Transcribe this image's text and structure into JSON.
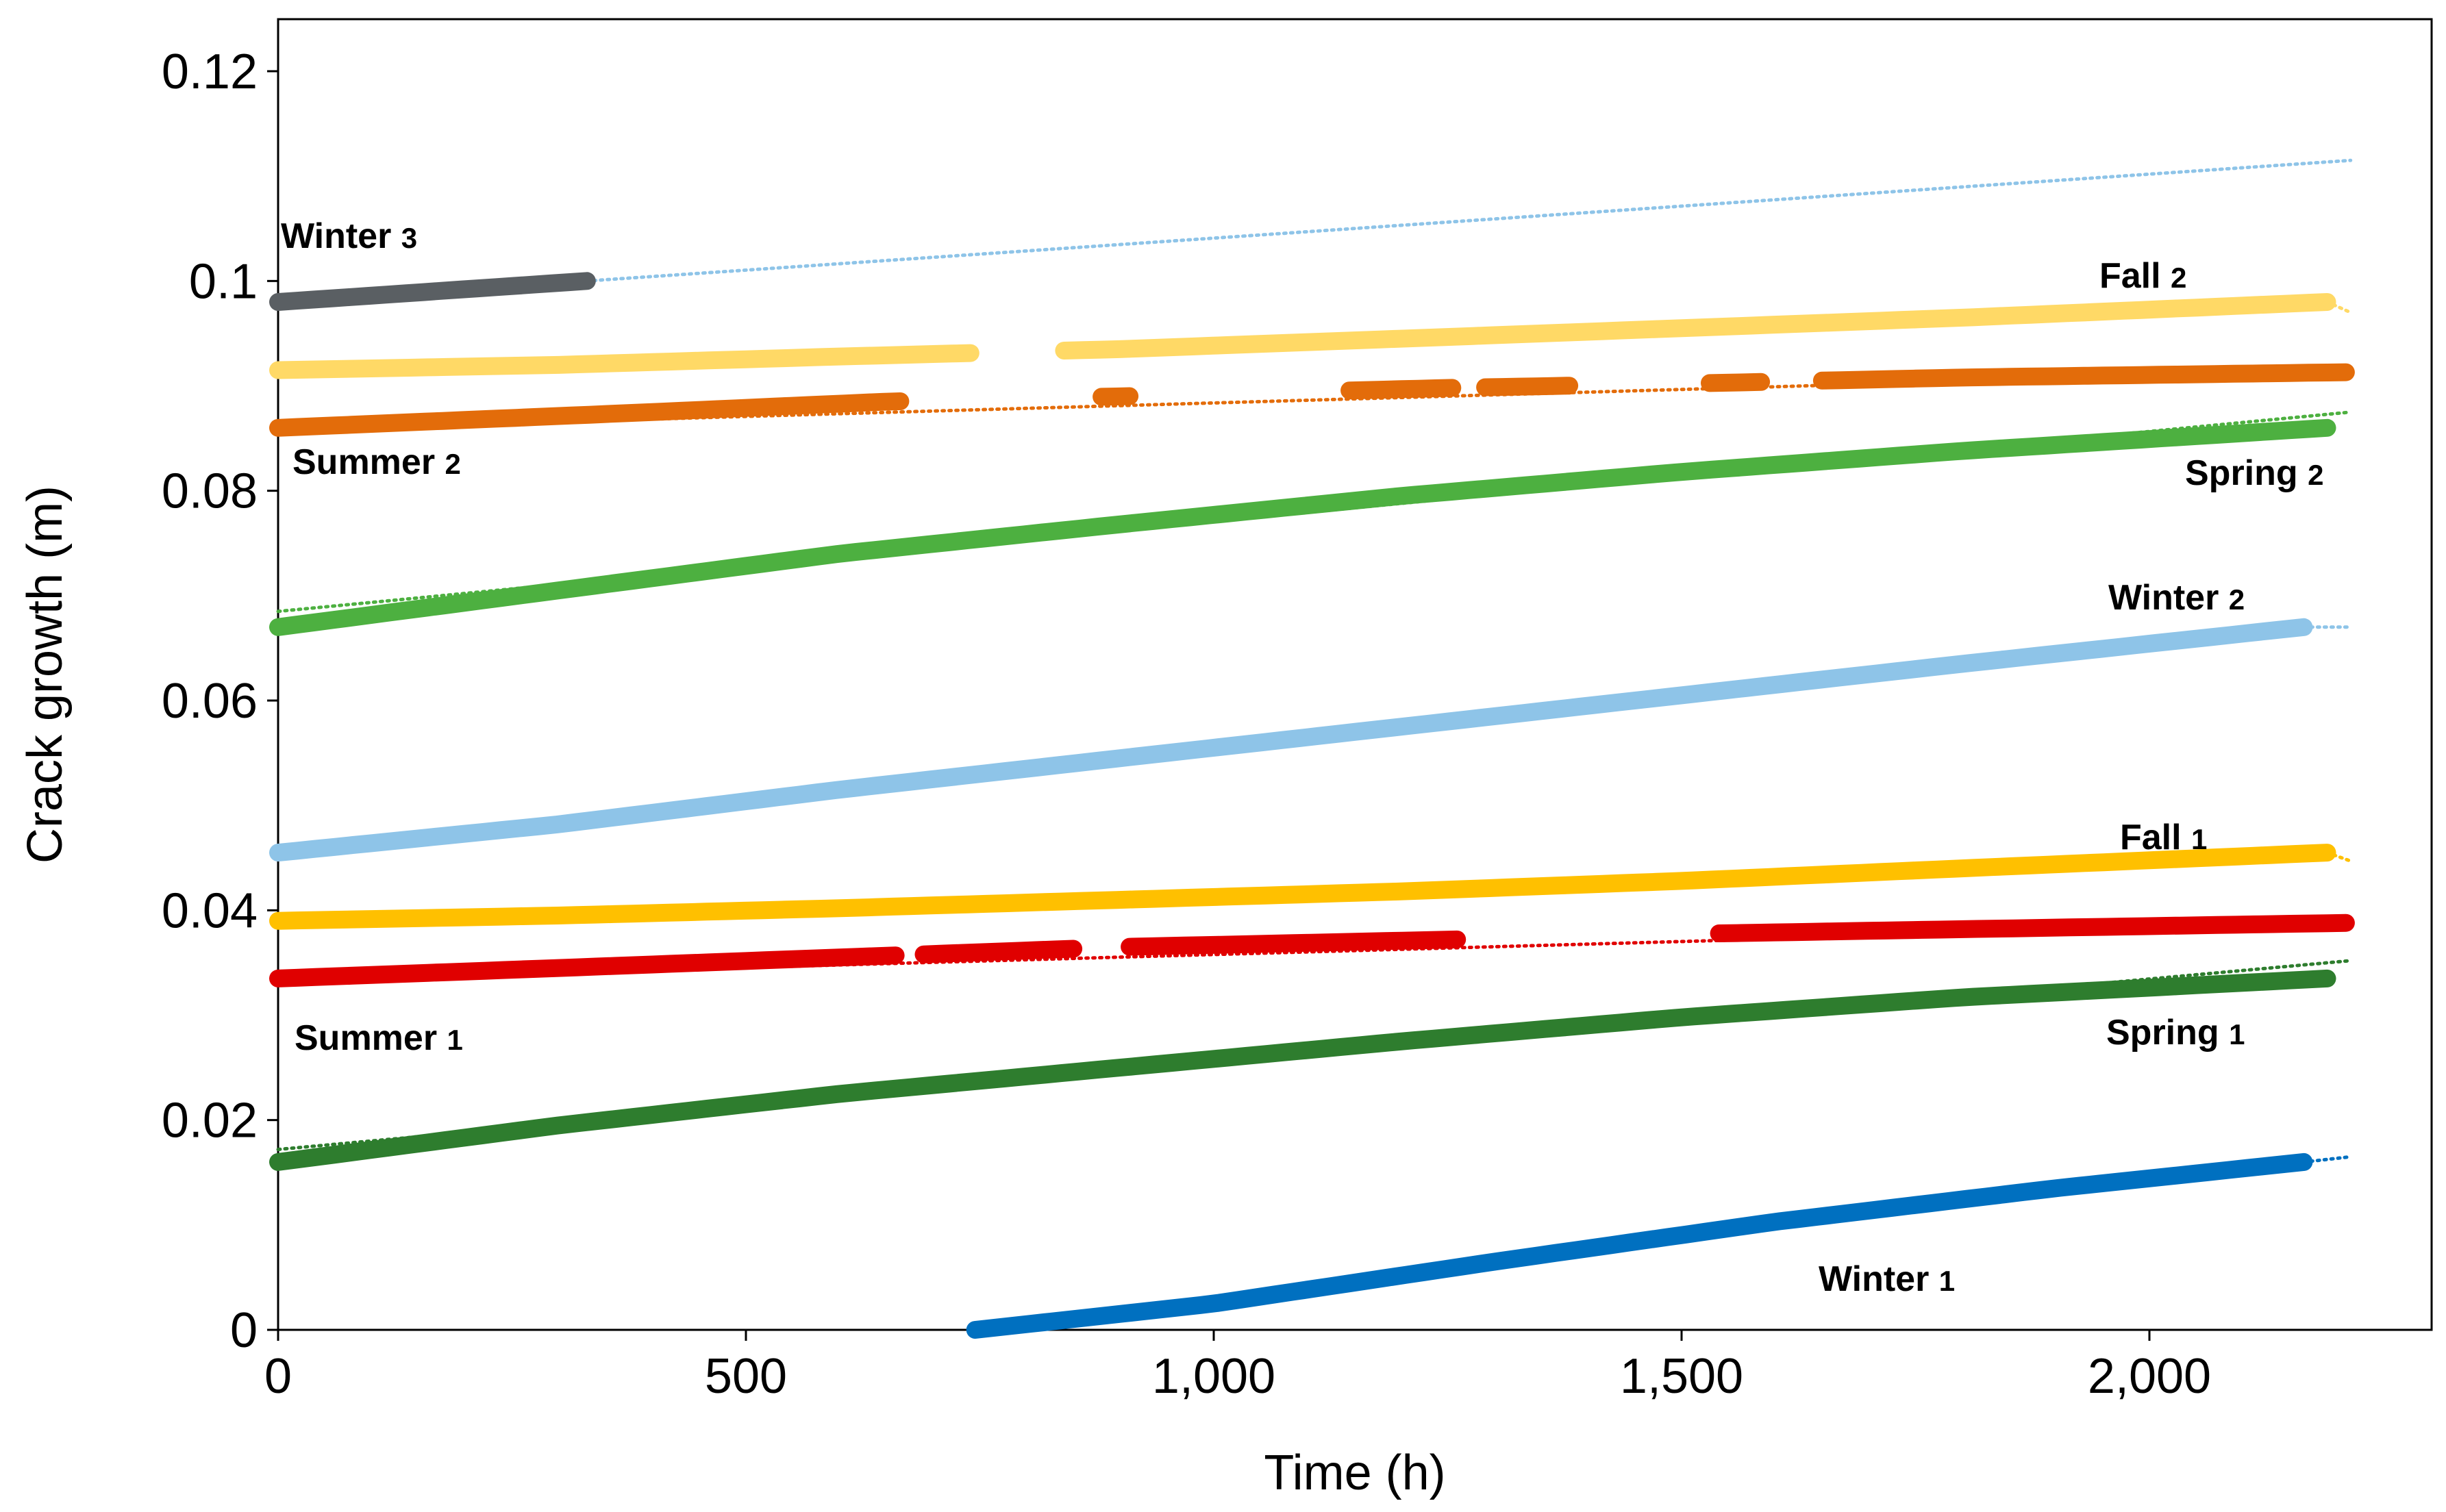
{
  "chart_data": {
    "type": "scatter",
    "title": "",
    "xlabel": "Time (h)",
    "ylabel": "Crack growth (m)",
    "xlim": [
      0,
      2300
    ],
    "ylim": [
      0,
      0.125
    ],
    "x_ticks": [
      0,
      500,
      1000,
      1500,
      2000
    ],
    "x_tick_labels": [
      "0",
      "500",
      "1,000",
      "1,500",
      "2,000"
    ],
    "y_ticks": [
      0,
      0.02,
      0.04,
      0.06,
      0.08,
      0.1,
      0.12
    ],
    "y_tick_labels": [
      "0",
      "0.02",
      "0.04",
      "0.06",
      "0.08",
      "0.1",
      "0.12"
    ],
    "grid": false,
    "legend": "none (series labelled directly)",
    "series": [
      {
        "name": "Winter 1",
        "label_main": "Winter",
        "label_sub": "1",
        "color": "#0070C0",
        "points": [
          [
            745,
            0
          ],
          [
            1000,
            0.0025
          ],
          [
            1300,
            0.0065
          ],
          [
            1600,
            0.0103
          ],
          [
            1900,
            0.0135
          ],
          [
            2165,
            0.016
          ]
        ],
        "trend": [
          [
            2165,
            0.016
          ],
          [
            2215,
            0.0165
          ]
        ],
        "gaps": []
      },
      {
        "name": "Spring 1",
        "label_main": "Spring",
        "label_sub": "1",
        "color": "#2E7D2E",
        "points": [
          [
            0,
            0.016
          ],
          [
            300,
            0.0195
          ],
          [
            600,
            0.0225
          ],
          [
            900,
            0.025
          ],
          [
            1200,
            0.0275
          ],
          [
            1500,
            0.0298
          ],
          [
            1800,
            0.0317
          ],
          [
            2190,
            0.0335
          ]
        ],
        "trend": [
          [
            0,
            0.0172
          ],
          [
            2215,
            0.0352
          ]
        ],
        "gaps": []
      },
      {
        "name": "Summer 1",
        "label_main": "Summer",
        "label_sub": "1",
        "color": "#E00000",
        "points": [
          [
            0,
            0.0335
          ],
          [
            300,
            0.0345
          ],
          [
            660,
            0.0357
          ],
          [
            900,
            0.0365
          ],
          [
            1250,
            0.0372
          ],
          [
            1540,
            0.0378
          ],
          [
            1800,
            0.0382
          ],
          [
            2210,
            0.0388
          ]
        ],
        "trend": [
          [
            0,
            0.0333
          ],
          [
            2215,
            0.0388
          ]
        ],
        "gaps": [
          [
            660,
            690
          ],
          [
            850,
            910
          ],
          [
            1260,
            1540
          ]
        ]
      },
      {
        "name": "Fall 1",
        "label_main": "Fall",
        "label_sub": "1",
        "color": "#FFC000",
        "points": [
          [
            0,
            0.039
          ],
          [
            300,
            0.0395
          ],
          [
            600,
            0.0402
          ],
          [
            900,
            0.041
          ],
          [
            1200,
            0.0418
          ],
          [
            1500,
            0.0428
          ],
          [
            1800,
            0.044
          ],
          [
            2190,
            0.0455
          ]
        ],
        "trend": [
          [
            2190,
            0.0455
          ],
          [
            2215,
            0.0447
          ]
        ],
        "gaps": []
      },
      {
        "name": "Winter 2",
        "label_main": "Winter",
        "label_sub": "2",
        "color": "#8EC4E8",
        "points": [
          [
            0,
            0.0455
          ],
          [
            300,
            0.0482
          ],
          [
            600,
            0.0515
          ],
          [
            900,
            0.0545
          ],
          [
            1200,
            0.0575
          ],
          [
            1500,
            0.0605
          ],
          [
            1800,
            0.0635
          ],
          [
            2165,
            0.067
          ]
        ],
        "trend": [
          [
            2165,
            0.067
          ],
          [
            2215,
            0.067
          ]
        ],
        "gaps": []
      },
      {
        "name": "Spring 2",
        "label_main": "Spring",
        "label_sub": "2",
        "color": "#4DB040",
        "points": [
          [
            0,
            0.067
          ],
          [
            300,
            0.0705
          ],
          [
            600,
            0.074
          ],
          [
            900,
            0.0768
          ],
          [
            1200,
            0.0795
          ],
          [
            1500,
            0.0818
          ],
          [
            1800,
            0.0838
          ],
          [
            2190,
            0.086
          ]
        ],
        "trend": [
          [
            0,
            0.0685
          ],
          [
            2215,
            0.0875
          ]
        ],
        "gaps": []
      },
      {
        "name": "Summer 2",
        "label_main": "Summer",
        "label_sub": "2",
        "color": "#E36C0A",
        "points": [
          [
            0,
            0.086
          ],
          [
            400,
            0.0875
          ],
          [
            650,
            0.0885
          ],
          [
            900,
            0.089
          ],
          [
            1250,
            0.0898
          ],
          [
            1550,
            0.0903
          ],
          [
            1800,
            0.0908
          ],
          [
            2210,
            0.0913
          ]
        ],
        "trend": [
          [
            0,
            0.0858
          ],
          [
            2215,
            0.0915
          ]
        ],
        "gaps": [
          [
            665,
            880
          ],
          [
            910,
            1145
          ],
          [
            1255,
            1290
          ],
          [
            1380,
            1530
          ],
          [
            1585,
            1650
          ]
        ]
      },
      {
        "name": "Fall 2",
        "label_main": "Fall",
        "label_sub": "2",
        "color": "#FFD966",
        "points": [
          [
            0,
            0.0915
          ],
          [
            300,
            0.092
          ],
          [
            600,
            0.0928
          ],
          [
            900,
            0.0935
          ],
          [
            1200,
            0.0945
          ],
          [
            1500,
            0.0955
          ],
          [
            1800,
            0.0965
          ],
          [
            2190,
            0.098
          ]
        ],
        "trend": [
          [
            2190,
            0.098
          ],
          [
            2215,
            0.097
          ]
        ],
        "gaps": [
          [
            740,
            840
          ]
        ]
      },
      {
        "name": "Winter 3",
        "label_main": "Winter",
        "label_sub": "3",
        "color": "#5A5F63",
        "points": [
          [
            0,
            0.098
          ],
          [
            330,
            0.1
          ]
        ],
        "trend": [
          [
            330,
            0.1
          ],
          [
            2215,
            0.1115
          ]
        ],
        "trend_color": "#8EC4E8",
        "gaps": []
      }
    ]
  }
}
